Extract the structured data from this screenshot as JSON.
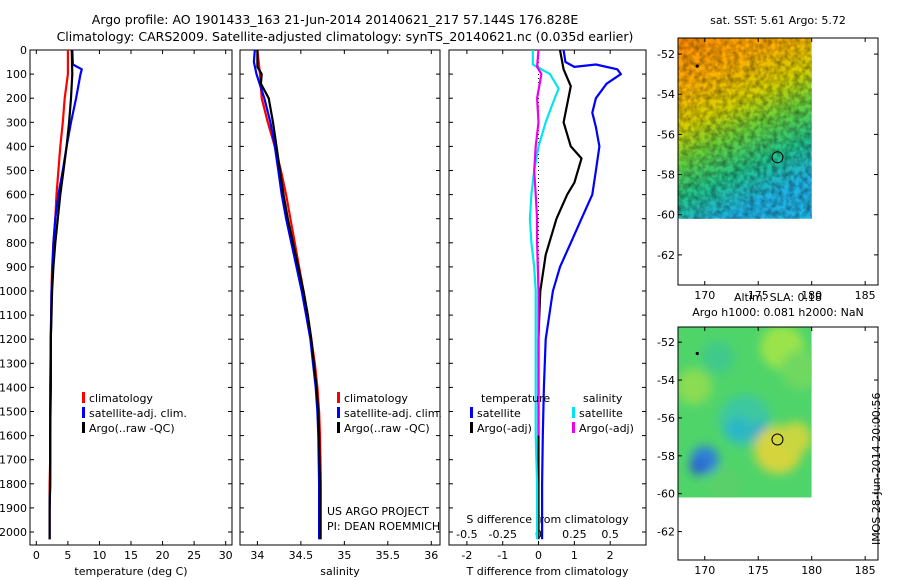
{
  "header": {
    "line1": "Argo profile: AO 1901433_163 21-Jun-2014 20140621_217 57.144S 176.828E",
    "line2": "Climatology: CARS2009. Satellite-adjusted climatology: synTS_20140621.nc (0.035d earlier)"
  },
  "colors": {
    "climatology": "#ff0000",
    "satellite": "#0000ff",
    "argo": "#000000",
    "sat_salinity": "#00e5ee",
    "argo_salinity": "#ee00ee"
  },
  "credits": {
    "line1": "US ARGO PROJECT",
    "line2": "PI: DEAN ROEMMICH"
  },
  "stamp": "IMOS 28-Jun-2014 20:00:56",
  "chart_data": [
    {
      "type": "line",
      "id": "temperature",
      "xlabel": "temperature (deg C)",
      "ylabel": "",
      "xlim": [
        -1,
        31
      ],
      "ylim": [
        0,
        2050
      ],
      "yreversed": true,
      "xticks": [
        0,
        5,
        10,
        15,
        20,
        25,
        30
      ],
      "yticks": [
        0,
        100,
        200,
        300,
        400,
        500,
        600,
        700,
        800,
        900,
        1000,
        1100,
        1200,
        1300,
        1400,
        1500,
        1600,
        1700,
        1800,
        1900,
        2000
      ],
      "legend": {
        "position": "lower-center",
        "entries": [
          "climatology",
          "satellite-adj. clim.",
          "Argo(..raw -QC)"
        ]
      },
      "series": [
        {
          "name": "climatology",
          "color": "#ff0000",
          "x": [
            5.0,
            5.0,
            4.5,
            4.2,
            3.8,
            3.5,
            3.2,
            3.0,
            2.7,
            2.5,
            2.4,
            2.3,
            2.3,
            2.2,
            2.2,
            2.2,
            2.1,
            2.1,
            2.1
          ],
          "y": [
            0,
            100,
            200,
            300,
            400,
            500,
            600,
            700,
            800,
            900,
            1000,
            1200,
            1400,
            1500,
            1600,
            1700,
            1800,
            1900,
            2030
          ]
        },
        {
          "name": "satellite-adj. clim.",
          "color": "#0000ff",
          "x": [
            5.7,
            5.8,
            7.2,
            7.0,
            6.3,
            5.5,
            4.8,
            4.2,
            3.5,
            3.0,
            2.7,
            2.6,
            2.4,
            2.3,
            2.2,
            2.2,
            2.2,
            2.2,
            2.1,
            2.1
          ],
          "y": [
            0,
            60,
            80,
            100,
            200,
            300,
            400,
            500,
            600,
            700,
            800,
            900,
            1000,
            1200,
            1400,
            1600,
            1700,
            1800,
            1900,
            2030
          ]
        },
        {
          "name": "Argo(..raw -QC)",
          "color": "#000000",
          "x": [
            5.6,
            5.7,
            5.5,
            5.2,
            4.8,
            4.3,
            3.8,
            3.4,
            3.0,
            2.7,
            2.5,
            2.4,
            2.3,
            2.3,
            2.2,
            2.2,
            2.2,
            2.1,
            2.1
          ],
          "y": [
            0,
            100,
            200,
            300,
            400,
            500,
            600,
            700,
            800,
            900,
            1000,
            1100,
            1200,
            1400,
            1600,
            1700,
            1800,
            1900,
            2030
          ]
        }
      ]
    },
    {
      "type": "line",
      "id": "salinity",
      "xlabel": "salinity",
      "ylabel": "",
      "xlim": [
        33.8,
        36.1
      ],
      "ylim": [
        0,
        2050
      ],
      "yreversed": true,
      "xticks": [
        34,
        34.5,
        35,
        35.5,
        36
      ],
      "xticklabels": [
        "34",
        "34.5",
        "35",
        "35.5",
        "36"
      ],
      "legend": {
        "position": "lower-center",
        "entries": [
          "climatology",
          "satellite-adj. clim.",
          "Argo(..raw -QC)"
        ]
      },
      "series": [
        {
          "name": "climatology",
          "color": "#ff0000",
          "x": [
            34.0,
            34.03,
            34.05,
            34.12,
            34.2,
            34.27,
            34.33,
            34.38,
            34.43,
            34.48,
            34.53,
            34.58,
            34.62,
            34.66,
            34.69,
            34.71,
            34.72,
            34.73,
            34.73
          ],
          "y": [
            0,
            100,
            200,
            300,
            400,
            500,
            600,
            700,
            800,
            900,
            1000,
            1100,
            1200,
            1300,
            1400,
            1500,
            1600,
            1800,
            2030
          ]
        },
        {
          "name": "satellite-adj. clim.",
          "color": "#0000ff",
          "x": [
            33.97,
            33.96,
            33.99,
            34.08,
            34.15,
            34.2,
            34.24,
            34.28,
            34.33,
            34.39,
            34.45,
            34.51,
            34.56,
            34.61,
            34.64,
            34.67,
            34.69,
            34.7,
            34.71,
            34.71
          ],
          "y": [
            0,
            50,
            100,
            200,
            300,
            400,
            500,
            600,
            700,
            800,
            900,
            1000,
            1100,
            1200,
            1300,
            1400,
            1500,
            1600,
            1800,
            2030
          ]
        },
        {
          "name": "Argo(..raw -QC)",
          "color": "#000000",
          "x": [
            34.0,
            34.0,
            34.05,
            34.04,
            34.13,
            34.18,
            34.22,
            34.26,
            34.3,
            34.35,
            34.41,
            34.47,
            34.53,
            34.58,
            34.62,
            34.65,
            34.68,
            34.7,
            34.71,
            34.72,
            34.72
          ],
          "y": [
            0,
            70,
            100,
            140,
            200,
            300,
            400,
            500,
            600,
            700,
            800,
            900,
            1000,
            1100,
            1200,
            1300,
            1400,
            1500,
            1600,
            1800,
            2030
          ]
        }
      ]
    },
    {
      "type": "line",
      "id": "difference",
      "xlabel": "T difference from climatology",
      "x2label": "S difference from climatology",
      "ylabel": "",
      "xlim": [
        -2.5,
        3.0
      ],
      "x2lim": [
        -0.625,
        0.75
      ],
      "ylim": [
        0,
        2050
      ],
      "yreversed": true,
      "xticks": [
        -2,
        -1,
        0,
        1,
        2
      ],
      "x2ticks": [
        -0.5,
        -0.25,
        0,
        0.25,
        0.5
      ],
      "x2ticklabels": [
        "-0.5",
        "-0.25",
        "0",
        "0.25",
        "0.5"
      ],
      "legend": {
        "position": "lower-center",
        "temperature_heading": "temperature",
        "salinity_heading": "salinity",
        "entries": [
          "satellite",
          "Argo(-adj)",
          "satellite",
          "Argo(-adj)"
        ]
      },
      "series": [
        {
          "name": "satellite",
          "group": "temperature",
          "color": "#0000ff",
          "x": [
            0.7,
            0.75,
            1.0,
            1.6,
            2.2,
            2.3,
            1.9,
            1.6,
            1.5,
            1.6,
            1.7,
            1.6,
            1.5,
            1.2,
            0.9,
            0.6,
            0.4,
            0.3,
            0.2,
            0.15,
            0.12,
            0.1,
            0.1,
            0.1
          ],
          "y": [
            0,
            50,
            70,
            60,
            80,
            100,
            140,
            200,
            260,
            320,
            400,
            500,
            600,
            700,
            800,
            900,
            1000,
            1100,
            1200,
            1400,
            1600,
            1800,
            2000,
            2030
          ]
        },
        {
          "name": "Argo(-adj)",
          "group": "temperature",
          "color": "#000000",
          "x": [
            0.6,
            0.7,
            0.9,
            0.7,
            0.9,
            1.2,
            1.0,
            0.8,
            0.5,
            0.2,
            0.05,
            0.02,
            0.0,
            0.0,
            0.0,
            0.0,
            0.0
          ],
          "y": [
            0,
            80,
            150,
            300,
            400,
            450,
            550,
            600,
            700,
            850,
            1000,
            1100,
            1200,
            1400,
            1600,
            1800,
            2030
          ]
        },
        {
          "name": "satellite",
          "group": "salinity",
          "color": "#00e5ee",
          "x": [
            -0.04,
            -0.04,
            0.08,
            0.14,
            0.1,
            0.05,
            0.0,
            -0.03,
            -0.05,
            -0.06,
            -0.05,
            -0.03,
            -0.02,
            -0.02,
            -0.02,
            -0.02,
            -0.01,
            -0.01
          ],
          "y": [
            0,
            60,
            100,
            160,
            220,
            300,
            400,
            500,
            600,
            700,
            800,
            900,
            1000,
            1200,
            1400,
            1600,
            1800,
            2030
          ]
        },
        {
          "name": "Argo(-adj)",
          "group": "salinity",
          "color": "#ee00ee",
          "x": [
            0.0,
            -0.01,
            0.02,
            -0.01,
            0.0,
            -0.02,
            -0.03,
            -0.02,
            -0.01,
            -0.01,
            0.0,
            0.0,
            0.0
          ],
          "y": [
            0,
            70,
            100,
            200,
            300,
            400,
            500,
            600,
            700,
            800,
            1000,
            1300,
            1600
          ]
        }
      ]
    },
    {
      "type": "heatmap",
      "id": "sst-map",
      "title": "sat. SST: 5.61  Argo: 5.72",
      "xlim": [
        167.5,
        186.2
      ],
      "ylim": [
        -63.5,
        -51.2
      ],
      "xticks": [
        170,
        175,
        180,
        185
      ],
      "yticks": [
        -52,
        -54,
        -56,
        -58,
        -60,
        -62
      ],
      "xticklabels": [
        "170",
        "175",
        "180",
        "185"
      ],
      "data_extent_lon": [
        167.5,
        180
      ],
      "data_extent_lat": [
        -60.2,
        -51.2
      ],
      "argo_position": {
        "lon": 176.8,
        "lat": -57.14
      },
      "marker_small": {
        "lon": 169.3,
        "lat": -52.6
      }
    },
    {
      "type": "heatmap",
      "id": "sla-map",
      "title": "Altim. SLA: 0.18",
      "subtitle": "Argo h1000: 0.081  h2000: NaN",
      "xlim": [
        167.5,
        186.2
      ],
      "ylim": [
        -63.5,
        -51.2
      ],
      "xticks": [
        170,
        175,
        180,
        185
      ],
      "yticks": [
        -52,
        -54,
        -56,
        -58,
        -60,
        -62
      ],
      "xticklabels": [
        "170",
        "175",
        "180",
        "185"
      ],
      "data_extent_lon": [
        167.5,
        180
      ],
      "data_extent_lat": [
        -60.2,
        -51.2
      ],
      "argo_position": {
        "lon": 176.8,
        "lat": -57.14
      },
      "marker_small": {
        "lon": 169.3,
        "lat": -52.6
      }
    }
  ]
}
